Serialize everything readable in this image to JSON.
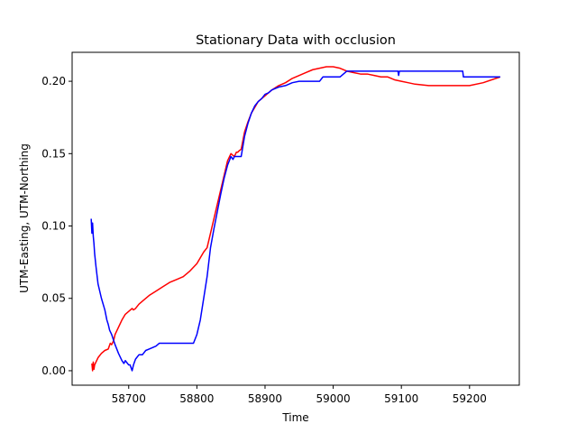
{
  "chart_data": {
    "type": "line",
    "title": "Stationary Data with occlusion",
    "xlabel": "Time",
    "ylabel": "UTM-Easting, UTM-Northing",
    "xlim": [
      58617,
      59273
    ],
    "ylim": [
      -0.01,
      0.22
    ],
    "x_ticks": [
      58700,
      58800,
      58900,
      59000,
      59100,
      59200
    ],
    "x_tick_labels": [
      "58700",
      "58800",
      "58900",
      "59000",
      "59100",
      "59200"
    ],
    "y_ticks": [
      0.0,
      0.05,
      0.1,
      0.15,
      0.2
    ],
    "y_tick_labels": [
      "0.00",
      "0.05",
      "0.10",
      "0.15",
      "0.20"
    ],
    "grid": false,
    "series": [
      {
        "color": "#ff0000",
        "x": [
          58646,
          58647,
          58648,
          58649,
          58650,
          58652,
          58655,
          58660,
          58665,
          58670,
          58673,
          58675,
          58678,
          58680,
          58685,
          58690,
          58695,
          58700,
          58705,
          58707,
          58710,
          58715,
          58720,
          58730,
          58740,
          58750,
          58760,
          58770,
          58780,
          58790,
          58800,
          58810,
          58815,
          58820,
          58825,
          58830,
          58835,
          58840,
          58845,
          58850,
          58855,
          58858,
          58860,
          58862,
          58865,
          58870,
          58875,
          58880,
          58885,
          58890,
          58900,
          58910,
          58920,
          58930,
          58940,
          58950,
          58960,
          58970,
          58980,
          58990,
          59000,
          59010,
          59020,
          59030,
          59040,
          59050,
          59060,
          59070,
          59080,
          59090,
          59100,
          59110,
          59120,
          59140,
          59160,
          59180,
          59200,
          59220,
          59245
        ],
        "y": [
          0.005,
          0.0,
          0.006,
          0.001,
          0.004,
          0.006,
          0.009,
          0.012,
          0.014,
          0.015,
          0.019,
          0.018,
          0.021,
          0.025,
          0.03,
          0.035,
          0.039,
          0.041,
          0.043,
          0.042,
          0.043,
          0.046,
          0.048,
          0.052,
          0.055,
          0.058,
          0.061,
          0.063,
          0.065,
          0.069,
          0.074,
          0.082,
          0.085,
          0.095,
          0.105,
          0.115,
          0.125,
          0.135,
          0.145,
          0.15,
          0.148,
          0.151,
          0.151,
          0.152,
          0.153,
          0.165,
          0.172,
          0.178,
          0.182,
          0.186,
          0.19,
          0.194,
          0.197,
          0.199,
          0.202,
          0.204,
          0.206,
          0.208,
          0.209,
          0.21,
          0.21,
          0.209,
          0.207,
          0.206,
          0.205,
          0.205,
          0.204,
          0.203,
          0.203,
          0.201,
          0.2,
          0.199,
          0.198,
          0.197,
          0.197,
          0.197,
          0.197,
          0.199,
          0.203
        ]
      },
      {
        "color": "#0000ff",
        "x": [
          58645,
          58646,
          58647,
          58648,
          58649,
          58650,
          58652,
          58655,
          58660,
          58665,
          58668,
          58670,
          58672,
          58675,
          58680,
          58685,
          58690,
          58693,
          58695,
          58700,
          58702,
          58705,
          58707,
          58710,
          58715,
          58720,
          58725,
          58730,
          58735,
          58740,
          58745,
          58750,
          58760,
          58780,
          58795,
          58800,
          58805,
          58810,
          58815,
          58820,
          58825,
          58830,
          58835,
          58840,
          58845,
          58850,
          58853,
          58855,
          58858,
          58860,
          58862,
          58865,
          58870,
          58875,
          58880,
          58885,
          58890,
          58895,
          58900,
          58905,
          58910,
          58920,
          58930,
          58940,
          58950,
          58960,
          58980,
          58985,
          59000,
          59010,
          59020,
          59030,
          59060,
          59090,
          59095,
          59096,
          59097,
          59100,
          59150,
          59180,
          59190,
          59191,
          59200,
          59220,
          59245
        ],
        "y": [
          0.105,
          0.095,
          0.102,
          0.093,
          0.088,
          0.081,
          0.072,
          0.06,
          0.05,
          0.042,
          0.035,
          0.032,
          0.028,
          0.025,
          0.018,
          0.012,
          0.007,
          0.005,
          0.007,
          0.004,
          0.004,
          0.0,
          0.004,
          0.008,
          0.011,
          0.011,
          0.014,
          0.015,
          0.016,
          0.017,
          0.019,
          0.019,
          0.019,
          0.019,
          0.019,
          0.025,
          0.035,
          0.05,
          0.065,
          0.085,
          0.098,
          0.11,
          0.122,
          0.133,
          0.142,
          0.148,
          0.146,
          0.148,
          0.148,
          0.148,
          0.148,
          0.148,
          0.162,
          0.171,
          0.178,
          0.183,
          0.186,
          0.188,
          0.191,
          0.192,
          0.194,
          0.196,
          0.197,
          0.199,
          0.2,
          0.2,
          0.2,
          0.203,
          0.203,
          0.203,
          0.207,
          0.207,
          0.207,
          0.207,
          0.207,
          0.204,
          0.207,
          0.207,
          0.207,
          0.207,
          0.207,
          0.203,
          0.203,
          0.203,
          0.203
        ]
      }
    ]
  }
}
